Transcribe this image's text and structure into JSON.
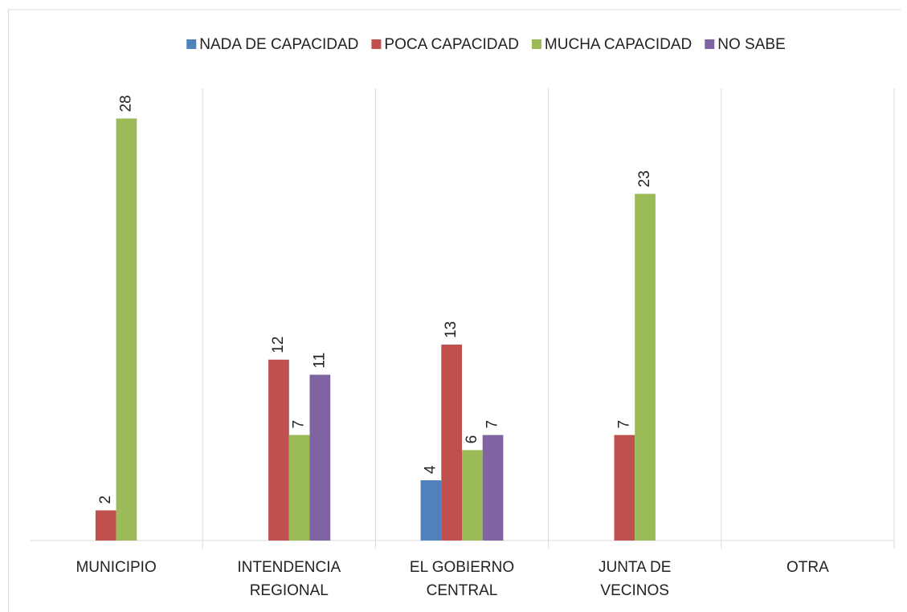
{
  "chart_data": {
    "type": "bar",
    "categories": [
      "MUNICIPIO",
      "INTENDENCIA REGIONAL",
      "EL GOBIERNO CENTRAL",
      "JUNTA DE VECINOS",
      "OTRA"
    ],
    "series": [
      {
        "name": "NADA DE CAPACIDAD",
        "color": "#4f81bd",
        "values": [
          null,
          null,
          4,
          null,
          null
        ]
      },
      {
        "name": "POCA CAPACIDAD",
        "color": "#c0504d",
        "values": [
          2,
          12,
          13,
          7,
          null
        ]
      },
      {
        "name": "MUCHA CAPACIDAD",
        "color": "#9bbb59",
        "values": [
          28,
          7,
          6,
          23,
          null
        ]
      },
      {
        "name": "NO SABE",
        "color": "#8064a2",
        "values": [
          null,
          11,
          7,
          null,
          null
        ]
      }
    ],
    "ylim": [
      0,
      30
    ],
    "legend": "top"
  }
}
